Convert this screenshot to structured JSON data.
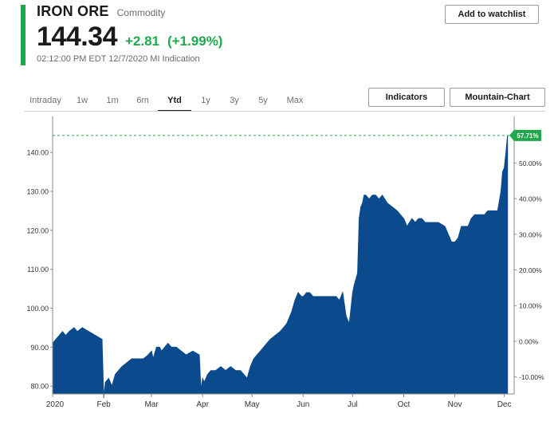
{
  "header": {
    "title": "IRON ORE",
    "subtitle": "Commodity",
    "price": "144.34",
    "change": "+2.81",
    "change_pct": "(+1.99%)",
    "timestamp": "02:12:00 PM EDT 12/7/2020 MI Indication",
    "accent_color": "#1fa84c",
    "positive_color": "#1fa84c"
  },
  "buttons": {
    "watchlist": "Add to watchlist",
    "indicators": "Indicators",
    "chart_type": "Mountain-Chart"
  },
  "range_tabs": {
    "items": [
      "Intraday",
      "1w",
      "1m",
      "6m",
      "Ytd",
      "1y",
      "3y",
      "5y",
      "Max"
    ],
    "active": "Ytd"
  },
  "chart_data": {
    "type": "area",
    "fill_color": "#0b4a8c",
    "last_value_badge": "57.71%",
    "badge_color": "#1fa84c",
    "ylim": [
      78,
      148
    ],
    "y_ticks": [
      "80.00",
      "90.00",
      "100.00",
      "110.00",
      "120.00",
      "130.00",
      "140.00"
    ],
    "y_tick_values": [
      80,
      90,
      100,
      110,
      120,
      130,
      140
    ],
    "y2_ticks": [
      "-10.00%",
      "0.00%",
      "10.00%",
      "20.00%",
      "30.00%",
      "40.00%",
      "50.00%"
    ],
    "y2_tick_values": [
      -10,
      0,
      10,
      20,
      30,
      40,
      50
    ],
    "y2_ref_value": 91.52,
    "x_ticks": [
      "2020",
      "Feb",
      "Mar",
      "Apr",
      "May",
      "Jun",
      "Jul",
      "Oct",
      "Nov",
      "Dec"
    ],
    "x_tick_values": [
      0,
      31,
      60,
      91,
      121,
      152,
      182,
      213,
      244,
      274
    ],
    "xlim": [
      0,
      280
    ],
    "grid": false,
    "series": [
      {
        "x": [
          0,
          2,
          4,
          6,
          8,
          10,
          13,
          15,
          18,
          22,
          26,
          30,
          31,
          32,
          34,
          36,
          38,
          40,
          42,
          45,
          48,
          50,
          52,
          55,
          58,
          60,
          61,
          63,
          65,
          66,
          68,
          70,
          72,
          75,
          78,
          81,
          85,
          89,
          90,
          91,
          92,
          94,
          96,
          99,
          102,
          105,
          108,
          111,
          114,
          116,
          118,
          120,
          122,
          124,
          126,
          128,
          130,
          132,
          135,
          138,
          142,
          145,
          147,
          149,
          151,
          152,
          154,
          156,
          158,
          160,
          163,
          166,
          169,
          172,
          174,
          176,
          178,
          180,
          181,
          182,
          183,
          185,
          186,
          187,
          188,
          189,
          190,
          192,
          194,
          196,
          198,
          200,
          203,
          206,
          209,
          211,
          213,
          215,
          218,
          220,
          222,
          224,
          226,
          230,
          234,
          238,
          240,
          242,
          244,
          246,
          248,
          250,
          252,
          254,
          256,
          259,
          262,
          264,
          266,
          268,
          270,
          272,
          273,
          274,
          275,
          276
        ],
        "values": [
          91,
          92,
          93,
          94,
          93,
          94,
          95,
          94,
          95,
          94,
          93,
          92,
          77,
          81,
          82,
          80,
          83,
          84,
          85,
          86,
          87,
          87,
          87,
          87,
          88,
          89,
          87,
          90,
          90,
          89,
          90,
          91,
          90,
          90,
          89,
          88,
          89,
          88,
          79,
          82,
          81,
          83,
          84,
          84,
          85,
          84,
          85,
          84,
          84,
          83,
          82,
          85,
          87,
          88,
          89,
          90,
          91,
          92,
          93,
          94,
          96,
          99,
          102,
          104,
          103,
          103,
          104,
          104,
          103,
          103,
          103,
          103,
          103,
          103,
          102,
          104,
          98,
          96,
          100,
          104,
          106,
          109,
          123,
          126,
          127,
          129,
          129,
          128,
          129,
          129,
          128,
          129,
          127,
          126,
          125,
          124,
          123,
          121,
          123,
          122,
          123,
          123,
          122,
          122,
          122,
          121,
          119,
          117,
          117,
          118,
          121,
          121,
          121,
          123,
          124,
          124,
          124,
          125,
          125,
          125,
          125,
          130,
          135,
          136,
          140,
          144.34
        ]
      }
    ]
  }
}
